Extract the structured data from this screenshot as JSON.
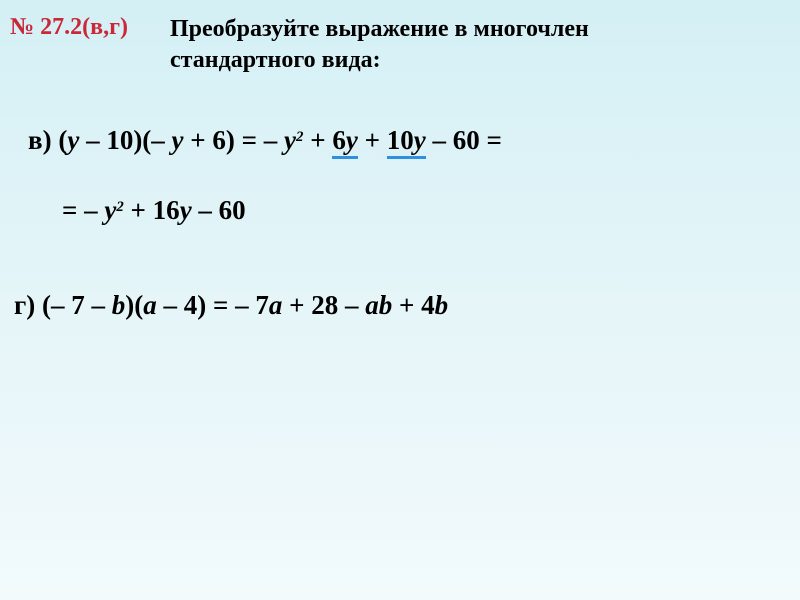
{
  "header": {
    "problem_number": "№ 27.2(в,г)",
    "title_line1": "Преобразуйте выражение в многочлен",
    "title_line2": "стандартного вида:"
  },
  "part_v": {
    "label": "в) (",
    "y1": "y",
    "t1": " – 10)(– ",
    "y2": "y",
    "t2": " + 6) = – ",
    "y3": "y",
    "t3": " + ",
    "u1_pre": "6",
    "u1_y": "y",
    "t4": "  + ",
    "u2_pre": "10",
    "u2_y": "y",
    "t5": " – 60 =",
    "line2_pre": "= – ",
    "line2_y": "y",
    "line2_rest": " + 16",
    "line2_y2": "y",
    "line2_end": " – 60"
  },
  "part_g": {
    "label": "г) (– 7 – ",
    "b1": "b",
    "t1": ")(",
    "a1": "a",
    "t2": " – 4) = – 7",
    "a2": "a",
    "t3": " + 28 – ",
    "a3": "ab",
    "t4": " + 4",
    "b2": "b"
  },
  "style": {
    "accent_color": "#c82838",
    "underline_color": "#3090e0",
    "bg_top": "#d4f0f5",
    "bg_bottom": "#f2fafc",
    "font_size_title": 24,
    "font_size_body": 27
  }
}
